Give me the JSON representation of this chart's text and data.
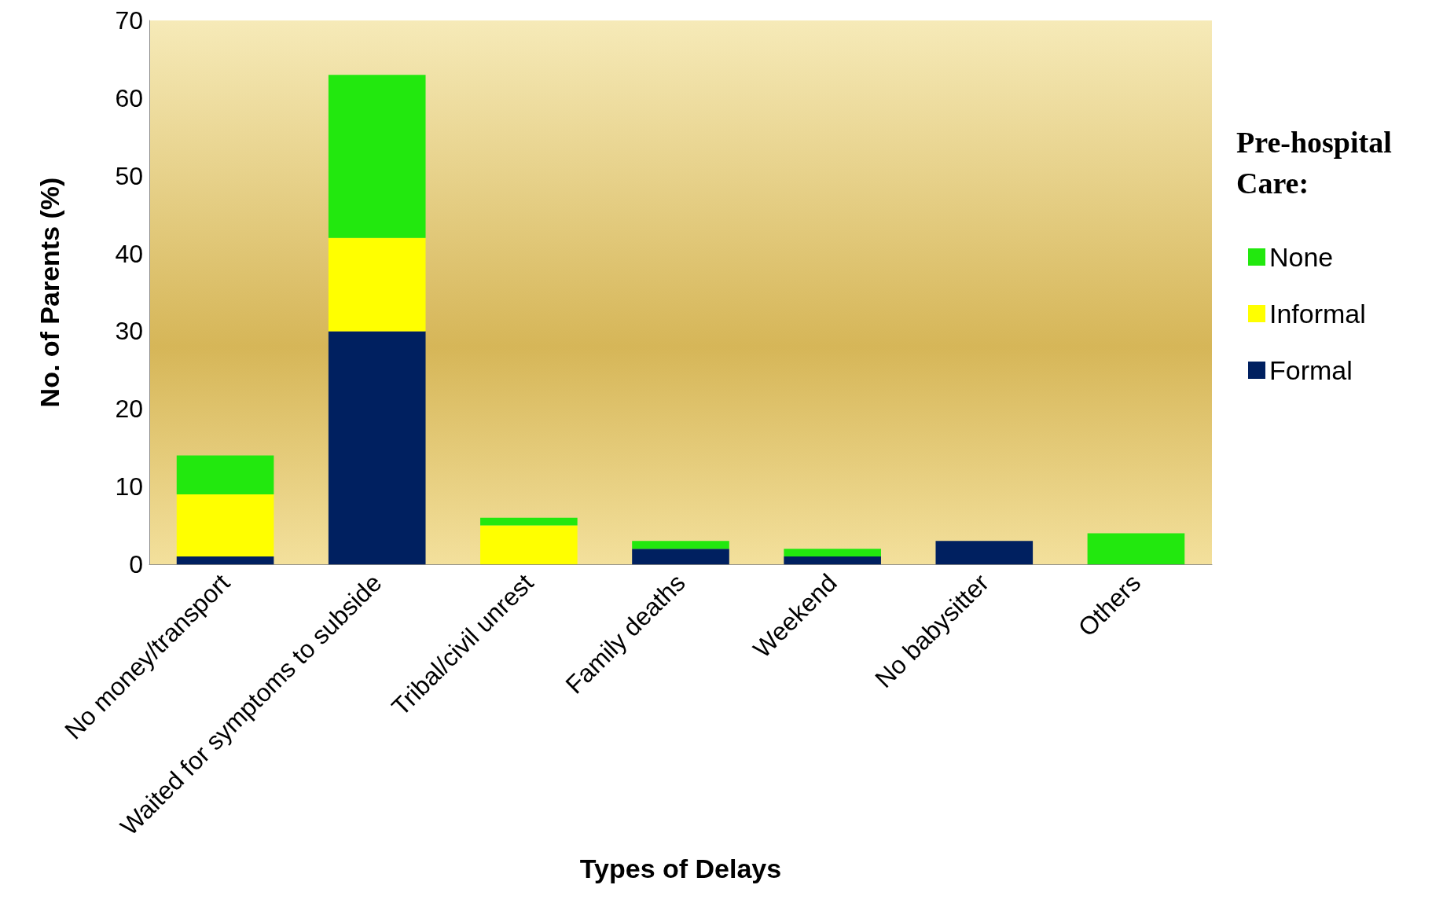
{
  "chart_data": {
    "type": "bar",
    "xlabel": "Types of Delays",
    "ylabel": "No. of Parents (%)",
    "legend_title": "Pre-hospital Care:",
    "categories": [
      "No money/transport",
      "Waited for symptoms to subside",
      "Tribal/civil unrest",
      "Family deaths",
      "Weekend",
      "No babysitter",
      "Others"
    ],
    "series": [
      {
        "name": "Formal",
        "color": "#002060",
        "values": [
          1,
          30,
          0,
          2,
          1,
          3,
          0
        ]
      },
      {
        "name": "Informal",
        "color": "#ffff00",
        "values": [
          8,
          12,
          5,
          0,
          0,
          0,
          0
        ]
      },
      {
        "name": "None",
        "color": "#22e80e",
        "values": [
          5,
          21,
          1,
          1,
          1,
          0,
          4
        ]
      }
    ],
    "stacked": true,
    "ylim": [
      0,
      70
    ],
    "yticks": [
      0,
      10,
      20,
      30,
      40,
      50,
      60,
      70
    ],
    "grid": false,
    "legend": "right"
  }
}
